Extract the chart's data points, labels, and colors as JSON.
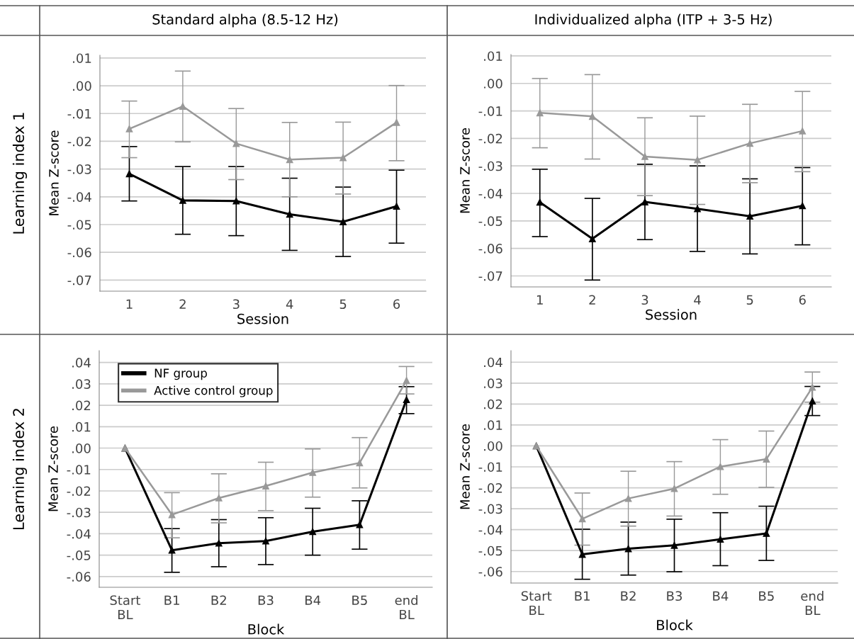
{
  "chart_data": [
    {
      "type": "line",
      "title": "Standard alpha (8.5-12 Hz)",
      "annotations": [
        "Learning index 1"
      ],
      "xlabel": "Session",
      "ylabel": "Mean Z-score",
      "categories": [
        "1",
        "2",
        "3",
        "4",
        "5",
        "6"
      ],
      "series": [
        {
          "color": "#000000",
          "values": [
            -0.0317,
            -0.0413,
            -0.0415,
            -0.0463,
            -0.049,
            -0.0434
          ],
          "errors": [
            [
              -0.0415,
              -0.0219
            ],
            [
              -0.0535,
              -0.0291
            ],
            [
              -0.054,
              -0.0291
            ],
            [
              -0.0593,
              -0.0333
            ],
            [
              -0.0615,
              -0.0365
            ],
            [
              -0.0567,
              -0.0304
            ]
          ]
        },
        {
          "color": "#999999",
          "values": [
            -0.0155,
            -0.0074,
            -0.0208,
            -0.0266,
            -0.0259,
            -0.0132
          ],
          "errors": [
            [
              -0.0259,
              -0.0055
            ],
            [
              -0.0202,
              0.0053
            ],
            [
              -0.0338,
              -0.0082
            ],
            [
              -0.04,
              -0.0132
            ],
            [
              -0.039,
              -0.0131
            ],
            [
              -0.027,
              0.0001
            ]
          ]
        }
      ],
      "ylim": [
        -0.074,
        0.011
      ],
      "yticks": [
        {
          "value": 0.01,
          "label": ".01"
        },
        {
          "value": 0.0,
          "label": ".00"
        },
        {
          "value": -0.01,
          "label": "-.01"
        },
        {
          "value": -0.02,
          "label": "-.02"
        },
        {
          "value": -0.03,
          "label": "-.03"
        },
        {
          "value": -0.04,
          "label": "-.04"
        },
        {
          "value": -0.05,
          "label": "-.05"
        },
        {
          "value": -0.06,
          "label": "-.06"
        },
        {
          "value": -0.07,
          "label": "-.07"
        }
      ],
      "grid": "y",
      "marker": "triangle",
      "line_style": "solid"
    },
    {
      "type": "line",
      "title": "Individualized alpha (ITP + 3-5 Hz)",
      "xlabel": "Session",
      "ylabel": "Mean Z-score",
      "categories": [
        "1",
        "2",
        "3",
        "4",
        "5",
        "6"
      ],
      "series": [
        {
          "color": "#000000",
          "values": [
            -0.0432,
            -0.0565,
            -0.0431,
            -0.0456,
            -0.0483,
            -0.0445
          ],
          "errors": [
            [
              -0.0557,
              -0.0312
            ],
            [
              -0.0715,
              -0.0418
            ],
            [
              -0.0568,
              -0.0294
            ],
            [
              -0.0611,
              -0.03
            ],
            [
              -0.062,
              -0.0347
            ],
            [
              -0.0587,
              -0.0306
            ]
          ]
        },
        {
          "color": "#999999",
          "values": [
            -0.0107,
            -0.012,
            -0.0266,
            -0.0278,
            -0.0218,
            -0.0173
          ],
          "errors": [
            [
              -0.0234,
              0.0018
            ],
            [
              -0.0275,
              0.0032
            ],
            [
              -0.0408,
              -0.0125
            ],
            [
              -0.044,
              -0.0119
            ],
            [
              -0.0361,
              -0.0076
            ],
            [
              -0.0321,
              -0.0029
            ]
          ]
        }
      ],
      "ylim": [
        -0.074,
        0.0105
      ],
      "yticks": [
        {
          "value": 0.01,
          "label": ".01"
        },
        {
          "value": 0.0,
          "label": ".00"
        },
        {
          "value": -0.01,
          "label": "-.01"
        },
        {
          "value": -0.02,
          "label": "-.02"
        },
        {
          "value": -0.03,
          "label": "-.03"
        },
        {
          "value": -0.04,
          "label": "-.04"
        },
        {
          "value": -0.05,
          "label": "-.05"
        },
        {
          "value": -0.06,
          "label": "-.06"
        },
        {
          "value": -0.07,
          "label": "-.07"
        }
      ],
      "grid": "y",
      "marker": "triangle",
      "line_style": "solid"
    },
    {
      "type": "line",
      "annotations": [
        "Learning index 2"
      ],
      "xlabel": "Block",
      "ylabel": "Mean Z-score",
      "categories": [
        "Start\nBL",
        "B1",
        "B2",
        "B3",
        "B4",
        "B5",
        "end\nBL"
      ],
      "series": [
        {
          "name": "NF group",
          "color": "#000000",
          "values": [
            0.0,
            -0.0477,
            -0.0444,
            -0.0434,
            -0.039,
            -0.0358,
            0.0226
          ],
          "errors": [
            null,
            [
              -0.058,
              -0.0376
            ],
            [
              -0.0554,
              -0.0334
            ],
            [
              -0.0544,
              -0.0325
            ],
            [
              -0.05,
              -0.0281
            ],
            [
              -0.0472,
              -0.0246
            ],
            [
              0.0161,
              0.0287
            ]
          ]
        },
        {
          "name": "Active control group",
          "color": "#999999",
          "values": [
            0.0,
            -0.0311,
            -0.0233,
            -0.0177,
            -0.0114,
            -0.0069,
            0.0316
          ],
          "errors": [
            null,
            [
              -0.0419,
              -0.0208
            ],
            [
              -0.0349,
              -0.012
            ],
            [
              -0.0292,
              -0.0066
            ],
            [
              -0.0229,
              -0.0004
            ],
            [
              -0.0186,
              0.0049
            ],
            [
              0.0253,
              0.0381
            ]
          ]
        }
      ],
      "ylim": [
        -0.065,
        0.0455
      ],
      "yticks": [
        {
          "value": 0.04,
          "label": ".04"
        },
        {
          "value": 0.03,
          "label": ".03"
        },
        {
          "value": 0.02,
          "label": ".02"
        },
        {
          "value": 0.01,
          "label": ".01"
        },
        {
          "value": 0.0,
          "label": ".00"
        },
        {
          "value": -0.01,
          "label": "-.01"
        },
        {
          "value": -0.02,
          "label": "-.02"
        },
        {
          "value": -0.03,
          "label": "-.03"
        },
        {
          "value": -0.04,
          "label": "-.04"
        },
        {
          "value": -0.05,
          "label": "-.05"
        },
        {
          "value": -0.06,
          "label": "-.06"
        }
      ],
      "grid": "y",
      "marker": "triangle",
      "line_style": "solid",
      "legend": "top left"
    },
    {
      "type": "line",
      "xlabel": "Block",
      "ylabel": "Mean Z-score",
      "categories": [
        "Start\nBL",
        "B1",
        "B2",
        "B3",
        "B4",
        "B5",
        "end\nBL"
      ],
      "series": [
        {
          "color": "#000000",
          "values": [
            0.0,
            -0.0518,
            -0.0491,
            -0.0475,
            -0.0446,
            -0.0418,
            0.0214
          ],
          "errors": [
            null,
            [
              -0.0637,
              -0.0398
            ],
            [
              -0.0617,
              -0.0364
            ],
            [
              -0.0601,
              -0.035
            ],
            [
              -0.0572,
              -0.0319
            ],
            [
              -0.0547,
              -0.0288
            ],
            [
              0.0145,
              0.0284
            ]
          ]
        },
        {
          "color": "#999999",
          "values": [
            0.0,
            -0.0348,
            -0.0251,
            -0.0204,
            -0.0099,
            -0.0063,
            0.028
          ],
          "errors": [
            null,
            [
              -0.0474,
              -0.0225
            ],
            [
              -0.0383,
              -0.0121
            ],
            [
              -0.0335,
              -0.0075
            ],
            [
              -0.0231,
              0.003
            ],
            [
              -0.0198,
              0.0071
            ],
            [
              0.0209,
              0.0353
            ]
          ]
        }
      ],
      "ylim": [
        -0.0655,
        0.0455
      ],
      "yticks": [
        {
          "value": 0.04,
          "label": ".04"
        },
        {
          "value": 0.03,
          "label": ".03"
        },
        {
          "value": 0.02,
          "label": ".02"
        },
        {
          "value": 0.01,
          "label": ".01"
        },
        {
          "value": 0.0,
          "label": ".00"
        },
        {
          "value": -0.01,
          "label": "-.01"
        },
        {
          "value": -0.02,
          "label": "-.02"
        },
        {
          "value": -0.03,
          "label": "-.03"
        },
        {
          "value": -0.04,
          "label": "-.04"
        },
        {
          "value": -0.05,
          "label": "-.05"
        },
        {
          "value": -0.06,
          "label": "-.06"
        }
      ],
      "grid": "y",
      "marker": "triangle",
      "line_style": "solid"
    }
  ]
}
